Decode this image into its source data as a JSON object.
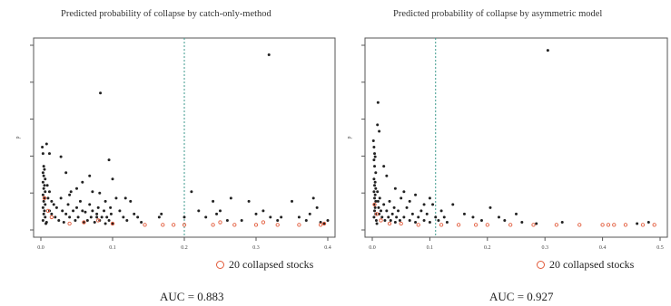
{
  "chart_data": [
    {
      "type": "scatter",
      "title": "Predicted probability of collapse by catch-only-method",
      "xlim": [
        0,
        0.4
      ],
      "ylim": [
        0,
        0.29
      ],
      "x_ticks": [
        "0.0",
        "0.1",
        "0.2",
        "0.3",
        "0.4"
      ],
      "y_axis_label": "p",
      "threshold_x": 0.2,
      "legend": "20 collapsed stocks",
      "auc_text": "AUC = 0.883",
      "grid": false,
      "series": [
        {
          "name": "",
          "color": "#222222",
          "points": [
            [
              0.002,
              0.13
            ],
            [
              0.003,
              0.12
            ],
            [
              0.004,
              0.1
            ],
            [
              0.005,
              0.095
            ],
            [
              0.003,
              0.09
            ],
            [
              0.004,
              0.085
            ],
            [
              0.006,
              0.08
            ],
            [
              0.003,
              0.075
            ],
            [
              0.005,
              0.07
            ],
            [
              0.004,
              0.065
            ],
            [
              0.006,
              0.06
            ],
            [
              0.003,
              0.055
            ],
            [
              0.005,
              0.05
            ],
            [
              0.004,
              0.045
            ],
            [
              0.006,
              0.04
            ],
            [
              0.003,
              0.035
            ],
            [
              0.005,
              0.03
            ],
            [
              0.004,
              0.025
            ],
            [
              0.006,
              0.02
            ],
            [
              0.003,
              0.015
            ],
            [
              0.008,
              0.012
            ],
            [
              0.007,
              0.01
            ],
            [
              0.009,
              0.07
            ],
            [
              0.01,
              0.05
            ],
            [
              0.012,
              0.03
            ],
            [
              0.012,
              0.06
            ],
            [
              0.015,
              0.025
            ],
            [
              0.015,
              0.045
            ],
            [
              0.018,
              0.04
            ],
            [
              0.02,
              0.02
            ],
            [
              0.022,
              0.035
            ],
            [
              0.025,
              0.015
            ],
            [
              0.028,
              0.05
            ],
            [
              0.03,
              0.03
            ],
            [
              0.032,
              0.012
            ],
            [
              0.035,
              0.025
            ],
            [
              0.038,
              0.04
            ],
            [
              0.04,
              0.02
            ],
            [
              0.042,
              0.06
            ],
            [
              0.045,
              0.03
            ],
            [
              0.048,
              0.015
            ],
            [
              0.05,
              0.035
            ],
            [
              0.052,
              0.02
            ],
            [
              0.055,
              0.045
            ],
            [
              0.058,
              0.03
            ],
            [
              0.06,
              0.012
            ],
            [
              0.062,
              0.028
            ],
            [
              0.065,
              0.015
            ],
            [
              0.068,
              0.04
            ],
            [
              0.07,
              0.02
            ],
            [
              0.072,
              0.03
            ],
            [
              0.075,
              0.012
            ],
            [
              0.078,
              0.025
            ],
            [
              0.08,
              0.035
            ],
            [
              0.082,
              0.015
            ],
            [
              0.085,
              0.02
            ],
            [
              0.088,
              0.03
            ],
            [
              0.09,
              0.01
            ],
            [
              0.092,
              0.02
            ],
            [
              0.095,
              0.015
            ],
            [
              0.098,
              0.025
            ],
            [
              0.1,
              0.01
            ],
            [
              0.012,
              0.12
            ],
            [
              0.008,
              0.135
            ],
            [
              0.028,
              0.115
            ],
            [
              0.035,
              0.09
            ],
            [
              0.058,
              0.075
            ],
            [
              0.068,
              0.085
            ],
            [
              0.082,
              0.058
            ],
            [
              0.083,
              0.215
            ],
            [
              0.095,
              0.11
            ],
            [
              0.1,
              0.08
            ],
            [
              0.105,
              0.05
            ],
            [
              0.11,
              0.03
            ],
            [
              0.115,
              0.02
            ],
            [
              0.118,
              0.05
            ],
            [
              0.12,
              0.015
            ],
            [
              0.125,
              0.045
            ],
            [
              0.13,
              0.025
            ],
            [
              0.135,
              0.02
            ],
            [
              0.14,
              0.012
            ],
            [
              0.04,
              0.055
            ],
            [
              0.05,
              0.065
            ],
            [
              0.072,
              0.06
            ],
            [
              0.078,
              0.02
            ],
            [
              0.09,
              0.045
            ],
            [
              0.097,
              0.035
            ],
            [
              0.165,
              0.02
            ],
            [
              0.168,
              0.025
            ],
            [
              0.2,
              0.02
            ],
            [
              0.21,
              0.06
            ],
            [
              0.22,
              0.03
            ],
            [
              0.23,
              0.02
            ],
            [
              0.24,
              0.045
            ],
            [
              0.245,
              0.025
            ],
            [
              0.25,
              0.03
            ],
            [
              0.26,
              0.015
            ],
            [
              0.265,
              0.05
            ],
            [
              0.28,
              0.015
            ],
            [
              0.29,
              0.045
            ],
            [
              0.3,
              0.025
            ],
            [
              0.31,
              0.03
            ],
            [
              0.32,
              0.02
            ],
            [
              0.318,
              0.275
            ],
            [
              0.33,
              0.015
            ],
            [
              0.335,
              0.02
            ],
            [
              0.35,
              0.045
            ],
            [
              0.36,
              0.02
            ],
            [
              0.37,
              0.015
            ],
            [
              0.375,
              0.025
            ],
            [
              0.38,
              0.05
            ],
            [
              0.385,
              0.035
            ],
            [
              0.39,
              0.012
            ],
            [
              0.395,
              0.01
            ],
            [
              0.4,
              0.015
            ]
          ]
        },
        {
          "name": "20 collapsed stocks",
          "color": "#e25a3a",
          "points": [
            [
              0.005,
              0.05
            ],
            [
              0.01,
              0.03
            ],
            [
              0.015,
              0.02
            ],
            [
              0.04,
              0.01
            ],
            [
              0.06,
              0.012
            ],
            [
              0.08,
              0.015
            ],
            [
              0.1,
              0.01
            ],
            [
              0.145,
              0.008
            ],
            [
              0.17,
              0.008
            ],
            [
              0.185,
              0.008
            ],
            [
              0.2,
              0.008
            ],
            [
              0.24,
              0.008
            ],
            [
              0.27,
              0.008
            ],
            [
              0.3,
              0.008
            ],
            [
              0.33,
              0.008
            ],
            [
              0.36,
              0.008
            ],
            [
              0.39,
              0.008
            ],
            [
              0.395,
              0.01
            ],
            [
              0.25,
              0.012
            ],
            [
              0.31,
              0.012
            ]
          ]
        }
      ]
    },
    {
      "type": "scatter",
      "title": "Predicted probability of collapse by asymmetric model",
      "xlim": [
        0,
        0.5
      ],
      "ylim": [
        0,
        0.29
      ],
      "x_ticks": [
        "0.0",
        "0.1",
        "0.2",
        "0.3",
        "0.4",
        "0.5"
      ],
      "y_axis_label": "p",
      "threshold_x": 0.11,
      "legend": "20 collapsed stocks",
      "auc_text": "AUC = 0.927",
      "grid": false,
      "series": [
        {
          "name": "",
          "color": "#222222",
          "points": [
            [
              0.002,
              0.14
            ],
            [
              0.003,
              0.13
            ],
            [
              0.004,
              0.12
            ],
            [
              0.005,
              0.115
            ],
            [
              0.003,
              0.11
            ],
            [
              0.004,
              0.1
            ],
            [
              0.006,
              0.09
            ],
            [
              0.003,
              0.08
            ],
            [
              0.005,
              0.075
            ],
            [
              0.004,
              0.07
            ],
            [
              0.006,
              0.065
            ],
            [
              0.003,
              0.06
            ],
            [
              0.005,
              0.055
            ],
            [
              0.004,
              0.05
            ],
            [
              0.006,
              0.045
            ],
            [
              0.003,
              0.04
            ],
            [
              0.005,
              0.035
            ],
            [
              0.004,
              0.03
            ],
            [
              0.006,
              0.025
            ],
            [
              0.003,
              0.02
            ],
            [
              0.007,
              0.015
            ],
            [
              0.008,
              0.01
            ],
            [
              0.009,
              0.06
            ],
            [
              0.01,
              0.045
            ],
            [
              0.011,
              0.035
            ],
            [
              0.012,
              0.025
            ],
            [
              0.013,
              0.05
            ],
            [
              0.015,
              0.03
            ],
            [
              0.017,
              0.02
            ],
            [
              0.02,
              0.04
            ],
            [
              0.022,
              0.015
            ],
            [
              0.025,
              0.03
            ],
            [
              0.028,
              0.02
            ],
            [
              0.03,
              0.045
            ],
            [
              0.032,
              0.015
            ],
            [
              0.035,
              0.025
            ],
            [
              0.038,
              0.035
            ],
            [
              0.04,
              0.012
            ],
            [
              0.042,
              0.02
            ],
            [
              0.045,
              0.03
            ],
            [
              0.048,
              0.015
            ],
            [
              0.05,
              0.05
            ],
            [
              0.055,
              0.02
            ],
            [
              0.06,
              0.035
            ],
            [
              0.065,
              0.015
            ],
            [
              0.07,
              0.025
            ],
            [
              0.075,
              0.012
            ],
            [
              0.08,
              0.02
            ],
            [
              0.085,
              0.03
            ],
            [
              0.09,
              0.015
            ],
            [
              0.095,
              0.025
            ],
            [
              0.1,
              0.012
            ],
            [
              0.105,
              0.04
            ],
            [
              0.11,
              0.02
            ],
            [
              0.115,
              0.015
            ],
            [
              0.12,
              0.03
            ],
            [
              0.125,
              0.02
            ],
            [
              0.13,
              0.012
            ],
            [
              0.01,
              0.2
            ],
            [
              0.012,
              0.155
            ],
            [
              0.009,
              0.165
            ],
            [
              0.02,
              0.1
            ],
            [
              0.025,
              0.085
            ],
            [
              0.04,
              0.065
            ],
            [
              0.055,
              0.06
            ],
            [
              0.065,
              0.045
            ],
            [
              0.075,
              0.055
            ],
            [
              0.09,
              0.04
            ],
            [
              0.1,
              0.05
            ],
            [
              0.14,
              0.04
            ],
            [
              0.16,
              0.025
            ],
            [
              0.175,
              0.02
            ],
            [
              0.19,
              0.015
            ],
            [
              0.205,
              0.035
            ],
            [
              0.22,
              0.02
            ],
            [
              0.23,
              0.015
            ],
            [
              0.25,
              0.025
            ],
            [
              0.26,
              0.012
            ],
            [
              0.285,
              0.01
            ],
            [
              0.305,
              0.282
            ],
            [
              0.33,
              0.012
            ],
            [
              0.46,
              0.01
            ],
            [
              0.48,
              0.012
            ]
          ]
        },
        {
          "name": "20 collapsed stocks",
          "color": "#e25a3a",
          "points": [
            [
              0.004,
              0.04
            ],
            [
              0.008,
              0.025
            ],
            [
              0.015,
              0.015
            ],
            [
              0.03,
              0.01
            ],
            [
              0.05,
              0.01
            ],
            [
              0.08,
              0.008
            ],
            [
              0.12,
              0.008
            ],
            [
              0.15,
              0.008
            ],
            [
              0.18,
              0.008
            ],
            [
              0.2,
              0.008
            ],
            [
              0.24,
              0.008
            ],
            [
              0.28,
              0.008
            ],
            [
              0.32,
              0.008
            ],
            [
              0.36,
              0.008
            ],
            [
              0.4,
              0.008
            ],
            [
              0.41,
              0.008
            ],
            [
              0.42,
              0.008
            ],
            [
              0.44,
              0.008
            ],
            [
              0.47,
              0.008
            ],
            [
              0.49,
              0.008
            ]
          ]
        }
      ]
    }
  ]
}
